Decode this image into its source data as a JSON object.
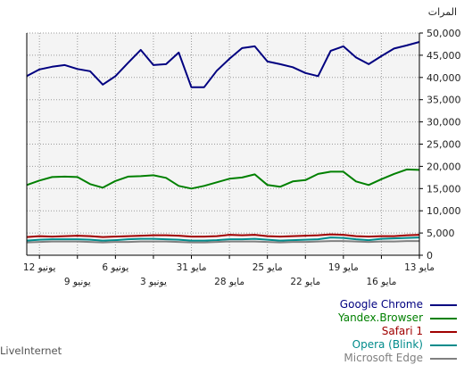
{
  "footer": {
    "source": "LiveInternet"
  },
  "chart_data": {
    "type": "line",
    "title": "",
    "ylabel": "المرات",
    "xlabel": "",
    "ylim": [
      0,
      50000
    ],
    "yticks": [
      0,
      5000,
      10000,
      15000,
      20000,
      25000,
      30000,
      35000,
      40000,
      45000,
      50000
    ],
    "ytick_labels": [
      "0",
      "5,000",
      "10,000",
      "15,000",
      "20,000",
      "25,000",
      "30,000",
      "35,000",
      "40,000",
      "45,000",
      "50,000"
    ],
    "x_direction": "right-to-left",
    "x_count": 32,
    "xtick_labels_row1": [
      {
        "index": 0,
        "label": "13 مايو"
      },
      {
        "index": 6,
        "label": "19 مايو"
      },
      {
        "index": 12,
        "label": "25 مايو"
      },
      {
        "index": 18,
        "label": "31 مايو"
      },
      {
        "index": 24,
        "label": "6 يونيو"
      },
      {
        "index": 30,
        "label": "12 يونيو"
      }
    ],
    "xtick_labels_row2": [
      {
        "index": 3,
        "label": "16 مايو"
      },
      {
        "index": 9,
        "label": "22 مايو"
      },
      {
        "index": 15,
        "label": "28 مايو"
      },
      {
        "index": 21,
        "label": "3 يونيو"
      },
      {
        "index": 27,
        "label": "9 يونيو"
      }
    ],
    "grid": true,
    "legend_position": "bottom-right",
    "series": [
      {
        "name": "Google Chrome",
        "color": "#000080",
        "values": [
          48000,
          47200,
          46500,
          44800,
          43000,
          44500,
          47000,
          46000,
          40300,
          41000,
          42300,
          43000,
          43600,
          47000,
          46600,
          44200,
          41500,
          37800,
          37800,
          45600,
          43000,
          42800,
          46200,
          43300,
          40300,
          38400,
          41400,
          41900,
          42800,
          42400,
          41800,
          40300
        ]
      },
      {
        "name": "Yandex.Browser",
        "color": "#008000",
        "values": [
          19200,
          19300,
          18300,
          17100,
          15800,
          16600,
          18800,
          18800,
          18300,
          16900,
          16600,
          15400,
          15800,
          18200,
          17500,
          17200,
          16400,
          15600,
          15000,
          15600,
          17400,
          18000,
          17800,
          17700,
          16700,
          15200,
          16000,
          17600,
          17700,
          17600,
          16800,
          15800
        ]
      },
      {
        "name": "Safari 1",
        "color": "#a00000",
        "values": [
          4600,
          4500,
          4300,
          4300,
          4200,
          4300,
          4600,
          4700,
          4500,
          4400,
          4300,
          4200,
          4300,
          4600,
          4500,
          4600,
          4300,
          4200,
          4200,
          4400,
          4500,
          4500,
          4400,
          4300,
          4200,
          4100,
          4300,
          4400,
          4300,
          4200,
          4300,
          4100
        ]
      },
      {
        "name": "Opera (Blink)",
        "color": "#008b8b",
        "values": [
          4000,
          3900,
          3800,
          3700,
          3400,
          3600,
          3900,
          4000,
          3600,
          3500,
          3400,
          3300,
          3500,
          3700,
          3600,
          3600,
          3400,
          3300,
          3300,
          3500,
          3600,
          3700,
          3700,
          3600,
          3400,
          3300,
          3500,
          3600,
          3600,
          3600,
          3500,
          3300
        ]
      },
      {
        "name": "Microsoft Edge",
        "color": "#808080",
        "values": [
          3200,
          3200,
          3100,
          3100,
          3000,
          3100,
          3200,
          3200,
          3100,
          3000,
          3000,
          2900,
          3000,
          3100,
          3100,
          3100,
          3000,
          2900,
          2900,
          3000,
          3100,
          3100,
          3100,
          3000,
          3000,
          2900,
          3000,
          3100,
          3100,
          3100,
          3000,
          2900
        ]
      }
    ]
  }
}
